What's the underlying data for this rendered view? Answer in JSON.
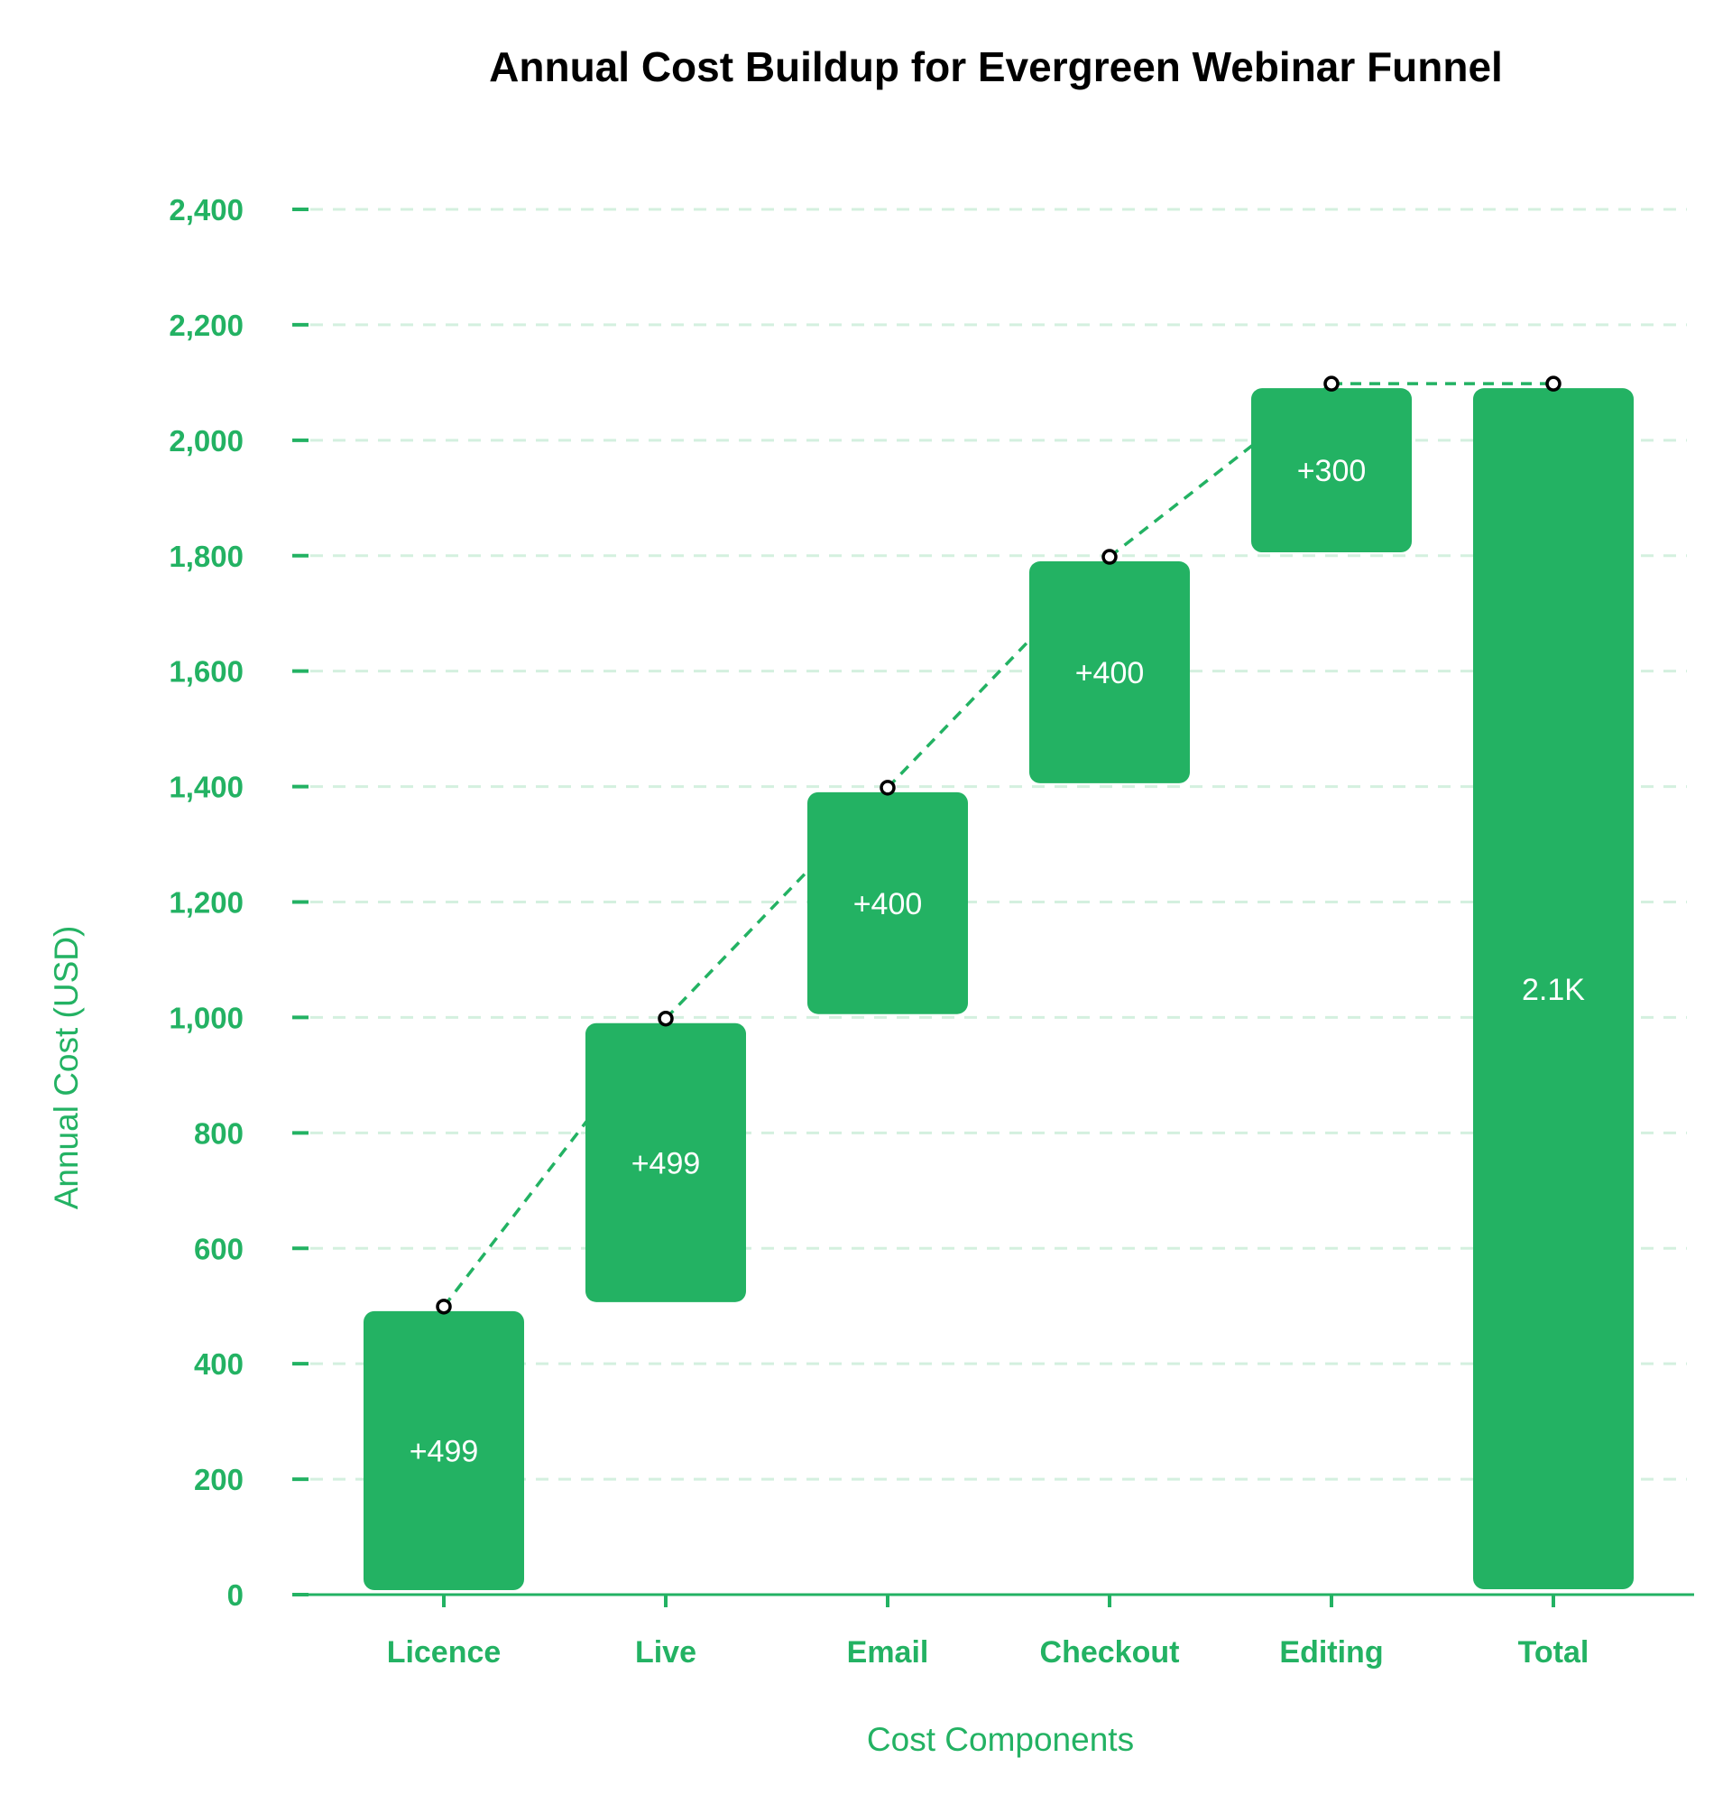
{
  "chart_data": {
    "type": "waterfall",
    "title": "Annual Cost Buildup for Evergreen Webinar Funnel",
    "xlabel": "Cost Components",
    "ylabel": "Annual Cost (USD)",
    "categories": [
      "Licence",
      "Live",
      "Email",
      "Checkout",
      "Editing",
      "Total"
    ],
    "steps": [
      {
        "category": "Licence",
        "value": 499,
        "kind": "increase",
        "label": "+499"
      },
      {
        "category": "Live",
        "value": 499,
        "kind": "increase",
        "label": "+499"
      },
      {
        "category": "Email",
        "value": 400,
        "kind": "increase",
        "label": "+400"
      },
      {
        "category": "Checkout",
        "value": 400,
        "kind": "increase",
        "label": "+400"
      },
      {
        "category": "Editing",
        "value": 300,
        "kind": "increase",
        "label": "+300"
      },
      {
        "category": "Total",
        "value": 2098,
        "kind": "total",
        "label": "2.1K"
      }
    ],
    "ylim": [
      0,
      2400
    ],
    "yticks": [
      0,
      200,
      400,
      600,
      800,
      1000,
      1200,
      1400,
      1600,
      1800,
      2000,
      2200,
      2400
    ],
    "ytick_labels": [
      "0",
      "200",
      "400",
      "600",
      "800",
      "1,000",
      "1,200",
      "1,400",
      "1,600",
      "1,800",
      "2,000",
      "2,200",
      "2,400"
    ],
    "grid": true,
    "connectors": "dashed",
    "colors": {
      "bar": "#23b263",
      "grid": "#d4f0df",
      "axis_text": "#23b263",
      "title": "#000000",
      "bar_text": "#ffffff",
      "marker_fill": "#ffffff",
      "marker_stroke": "#000000"
    }
  }
}
